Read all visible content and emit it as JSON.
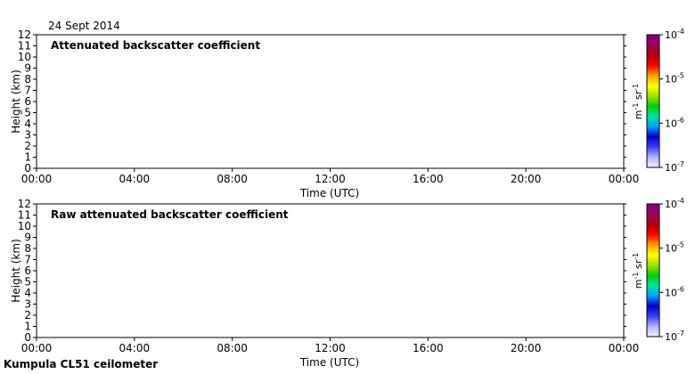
{
  "date_label": "24 Sept 2014",
  "footer_label": "Kumpula CL51 ceilometer",
  "colors": {
    "colormap": [
      "#f0f0ff",
      "#b4b4ff",
      "#3c3cff",
      "#0000c8",
      "#00a0ff",
      "#00e0a0",
      "#00d000",
      "#a0e000",
      "#ffff00",
      "#ffa000",
      "#ff0000",
      "#b00000",
      "#a00060",
      "#800080"
    ],
    "frame": "#000000"
  },
  "chart_data": [
    {
      "type": "heatmap",
      "title": "Attenuated backscatter coefficient",
      "xlabel": "Time (UTC)",
      "ylabel": "Height (km)",
      "x_ticks": [
        "00:00",
        "04:00",
        "08:00",
        "12:00",
        "16:00",
        "20:00",
        "00:00"
      ],
      "y_ticks": [
        "0",
        "1",
        "2",
        "3",
        "4",
        "5",
        "6",
        "7",
        "8",
        "9",
        "10",
        "11",
        "12"
      ],
      "ylim": [
        0,
        12
      ],
      "xlim_hours": [
        0,
        24
      ],
      "colorbar": {
        "label_parts": [
          "m",
          "-1",
          " sr",
          "-1"
        ],
        "ticks": [
          {
            "base": "10",
            "exp": "-4"
          },
          {
            "base": "10",
            "exp": "-5"
          },
          {
            "base": "10",
            "exp": "-6"
          },
          {
            "base": "10",
            "exp": "-7"
          }
        ],
        "scale": "log"
      }
    },
    {
      "type": "heatmap",
      "title": "Raw attenuated backscatter coefficient",
      "xlabel": "Time (UTC)",
      "ylabel": "Height (km)",
      "x_ticks": [
        "00:00",
        "04:00",
        "08:00",
        "12:00",
        "16:00",
        "20:00",
        "00:00"
      ],
      "y_ticks": [
        "0",
        "1",
        "2",
        "3",
        "4",
        "5",
        "6",
        "7",
        "8",
        "9",
        "10",
        "11",
        "12"
      ],
      "ylim": [
        0,
        12
      ],
      "xlim_hours": [
        0,
        24
      ],
      "colorbar": {
        "label_parts": [
          "m",
          "-1",
          " sr",
          "-1"
        ],
        "ticks": [
          {
            "base": "10",
            "exp": "-4"
          },
          {
            "base": "10",
            "exp": "-5"
          },
          {
            "base": "10",
            "exp": "-6"
          },
          {
            "base": "10",
            "exp": "-7"
          }
        ],
        "scale": "log"
      }
    }
  ]
}
